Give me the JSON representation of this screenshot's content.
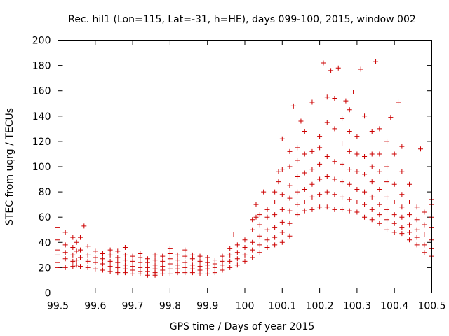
{
  "chart_data": {
    "type": "scatter",
    "title": "Rec. hil1 (Lon=115, Lat=-31, h=HE), days 099-100, 2015, window 002",
    "xlabel": "GPS time / Days of year 2015",
    "ylabel": "STEC from uqrg / TECUs",
    "xlim": [
      99.5,
      100.5
    ],
    "ylim": [
      0,
      200
    ],
    "x_ticks": [
      "99.5",
      "99.6",
      "99.7",
      "99.8",
      "99.9",
      "100",
      "100.1",
      "100.2",
      "100.3",
      "100.4",
      "100.5"
    ],
    "y_ticks": [
      "0",
      "20",
      "40",
      "60",
      "80",
      "100",
      "120",
      "140",
      "160",
      "180",
      "200"
    ],
    "grid": false,
    "marker": "plus",
    "color": "#cc0000",
    "series": [
      {
        "points": [
          [
            99.5,
            20
          ],
          [
            99.5,
            24
          ],
          [
            99.5,
            30
          ],
          [
            99.5,
            34
          ],
          [
            99.5,
            42
          ],
          [
            99.5,
            52
          ],
          [
            99.52,
            20
          ],
          [
            99.52,
            27
          ],
          [
            99.52,
            32
          ],
          [
            99.52,
            38
          ],
          [
            99.52,
            48
          ],
          [
            99.54,
            21
          ],
          [
            99.54,
            25
          ],
          [
            99.54,
            30
          ],
          [
            99.54,
            36
          ],
          [
            99.54,
            44
          ],
          [
            99.55,
            22
          ],
          [
            99.55,
            26
          ],
          [
            99.55,
            33
          ],
          [
            99.55,
            40
          ],
          [
            99.56,
            21
          ],
          [
            99.56,
            28
          ],
          [
            99.56,
            34
          ],
          [
            99.56,
            44
          ],
          [
            99.57,
            53
          ],
          [
            99.58,
            20
          ],
          [
            99.58,
            25
          ],
          [
            99.58,
            30
          ],
          [
            99.58,
            37
          ],
          [
            99.6,
            19
          ],
          [
            99.6,
            24
          ],
          [
            99.6,
            28
          ],
          [
            99.6,
            33
          ],
          [
            99.62,
            18
          ],
          [
            99.62,
            23
          ],
          [
            99.62,
            27
          ],
          [
            99.62,
            31
          ],
          [
            99.64,
            17
          ],
          [
            99.64,
            21
          ],
          [
            99.64,
            25
          ],
          [
            99.64,
            30
          ],
          [
            99.64,
            34
          ],
          [
            99.66,
            16
          ],
          [
            99.66,
            20
          ],
          [
            99.66,
            24
          ],
          [
            99.66,
            28
          ],
          [
            99.66,
            33
          ],
          [
            99.68,
            16
          ],
          [
            99.68,
            19
          ],
          [
            99.68,
            22
          ],
          [
            99.68,
            26
          ],
          [
            99.68,
            30
          ],
          [
            99.68,
            36
          ],
          [
            99.7,
            15
          ],
          [
            99.7,
            18
          ],
          [
            99.7,
            21
          ],
          [
            99.7,
            25
          ],
          [
            99.7,
            29
          ],
          [
            99.72,
            15
          ],
          [
            99.72,
            17
          ],
          [
            99.72,
            20
          ],
          [
            99.72,
            24
          ],
          [
            99.72,
            28
          ],
          [
            99.72,
            31
          ],
          [
            99.74,
            14
          ],
          [
            99.74,
            17
          ],
          [
            99.74,
            20
          ],
          [
            99.74,
            24
          ],
          [
            99.74,
            27
          ],
          [
            99.76,
            14
          ],
          [
            99.76,
            16
          ],
          [
            99.76,
            19
          ],
          [
            99.76,
            22
          ],
          [
            99.76,
            26
          ],
          [
            99.76,
            30
          ],
          [
            99.78,
            15
          ],
          [
            99.78,
            18
          ],
          [
            99.78,
            21
          ],
          [
            99.78,
            25
          ],
          [
            99.78,
            29
          ],
          [
            99.8,
            15
          ],
          [
            99.8,
            19
          ],
          [
            99.8,
            23
          ],
          [
            99.8,
            27
          ],
          [
            99.8,
            31
          ],
          [
            99.8,
            35
          ],
          [
            99.82,
            16
          ],
          [
            99.82,
            19
          ],
          [
            99.82,
            22
          ],
          [
            99.82,
            26
          ],
          [
            99.82,
            30
          ],
          [
            99.84,
            16
          ],
          [
            99.84,
            20
          ],
          [
            99.84,
            24
          ],
          [
            99.84,
            29
          ],
          [
            99.84,
            34
          ],
          [
            99.86,
            16
          ],
          [
            99.86,
            19
          ],
          [
            99.86,
            22
          ],
          [
            99.86,
            27
          ],
          [
            99.86,
            30
          ],
          [
            99.88,
            15
          ],
          [
            99.88,
            18
          ],
          [
            99.88,
            21
          ],
          [
            99.88,
            25
          ],
          [
            99.88,
            29
          ],
          [
            99.9,
            15
          ],
          [
            99.9,
            19
          ],
          [
            99.9,
            22
          ],
          [
            99.9,
            24
          ],
          [
            99.9,
            28
          ],
          [
            99.92,
            16
          ],
          [
            99.92,
            20
          ],
          [
            99.92,
            23
          ],
          [
            99.92,
            26
          ],
          [
            99.94,
            18
          ],
          [
            99.94,
            22
          ],
          [
            99.94,
            25
          ],
          [
            99.94,
            29
          ],
          [
            99.96,
            20
          ],
          [
            99.96,
            25
          ],
          [
            99.96,
            30
          ],
          [
            99.96,
            35
          ],
          [
            99.97,
            46
          ],
          [
            99.98,
            22
          ],
          [
            99.98,
            27
          ],
          [
            99.98,
            32
          ],
          [
            99.98,
            38
          ],
          [
            100.0,
            25
          ],
          [
            100.0,
            30
          ],
          [
            100.0,
            36
          ],
          [
            100.0,
            42
          ],
          [
            100.02,
            28
          ],
          [
            100.02,
            34
          ],
          [
            100.02,
            40
          ],
          [
            100.02,
            50
          ],
          [
            100.02,
            58
          ],
          [
            100.03,
            60
          ],
          [
            100.03,
            70
          ],
          [
            100.04,
            32
          ],
          [
            100.04,
            38
          ],
          [
            100.04,
            45
          ],
          [
            100.04,
            54
          ],
          [
            100.04,
            62
          ],
          [
            100.05,
            80
          ],
          [
            100.06,
            36
          ],
          [
            100.06,
            42
          ],
          [
            100.06,
            50
          ],
          [
            100.06,
            60
          ],
          [
            100.06,
            66
          ],
          [
            100.08,
            38
          ],
          [
            100.08,
            44
          ],
          [
            100.08,
            52
          ],
          [
            100.08,
            62
          ],
          [
            100.08,
            72
          ],
          [
            100.08,
            80
          ],
          [
            100.09,
            88
          ],
          [
            100.09,
            96
          ],
          [
            100.1,
            40
          ],
          [
            100.1,
            48
          ],
          [
            100.1,
            56
          ],
          [
            100.1,
            66
          ],
          [
            100.1,
            78
          ],
          [
            100.1,
            98
          ],
          [
            100.1,
            122
          ],
          [
            100.12,
            45
          ],
          [
            100.12,
            55
          ],
          [
            100.12,
            65
          ],
          [
            100.12,
            75
          ],
          [
            100.12,
            85
          ],
          [
            100.12,
            100
          ],
          [
            100.12,
            112
          ],
          [
            100.13,
            148
          ],
          [
            100.14,
            62
          ],
          [
            100.14,
            70
          ],
          [
            100.14,
            80
          ],
          [
            100.14,
            92
          ],
          [
            100.14,
            105
          ],
          [
            100.14,
            115
          ],
          [
            100.15,
            136
          ],
          [
            100.16,
            65
          ],
          [
            100.16,
            72
          ],
          [
            100.16,
            82
          ],
          [
            100.16,
            95
          ],
          [
            100.16,
            110
          ],
          [
            100.16,
            128
          ],
          [
            100.18,
            66
          ],
          [
            100.18,
            76
          ],
          [
            100.18,
            86
          ],
          [
            100.18,
            98
          ],
          [
            100.18,
            112
          ],
          [
            100.18,
            151
          ],
          [
            100.2,
            68
          ],
          [
            100.2,
            78
          ],
          [
            100.2,
            90
          ],
          [
            100.2,
            102
          ],
          [
            100.2,
            115
          ],
          [
            100.2,
            124
          ],
          [
            100.21,
            182
          ],
          [
            100.22,
            68
          ],
          [
            100.22,
            80
          ],
          [
            100.22,
            92
          ],
          [
            100.22,
            108
          ],
          [
            100.22,
            135
          ],
          [
            100.22,
            155
          ],
          [
            100.23,
            176
          ],
          [
            100.24,
            66
          ],
          [
            100.24,
            78
          ],
          [
            100.24,
            90
          ],
          [
            100.24,
            104
          ],
          [
            100.24,
            130
          ],
          [
            100.24,
            154
          ],
          [
            100.25,
            178
          ],
          [
            100.26,
            66
          ],
          [
            100.26,
            76
          ],
          [
            100.26,
            88
          ],
          [
            100.26,
            102
          ],
          [
            100.26,
            118
          ],
          [
            100.26,
            138
          ],
          [
            100.27,
            152
          ],
          [
            100.28,
            65
          ],
          [
            100.28,
            74
          ],
          [
            100.28,
            86
          ],
          [
            100.28,
            98
          ],
          [
            100.28,
            112
          ],
          [
            100.28,
            128
          ],
          [
            100.28,
            145
          ],
          [
            100.29,
            159
          ],
          [
            100.3,
            64
          ],
          [
            100.3,
            72
          ],
          [
            100.3,
            82
          ],
          [
            100.3,
            96
          ],
          [
            100.3,
            110
          ],
          [
            100.3,
            124
          ],
          [
            100.31,
            177
          ],
          [
            100.32,
            60
          ],
          [
            100.32,
            70
          ],
          [
            100.32,
            80
          ],
          [
            100.32,
            94
          ],
          [
            100.32,
            108
          ],
          [
            100.32,
            140
          ],
          [
            100.34,
            58
          ],
          [
            100.34,
            66
          ],
          [
            100.34,
            76
          ],
          [
            100.34,
            88
          ],
          [
            100.34,
            100
          ],
          [
            100.34,
            110
          ],
          [
            100.34,
            128
          ],
          [
            100.35,
            183
          ],
          [
            100.36,
            55
          ],
          [
            100.36,
            62
          ],
          [
            100.36,
            70
          ],
          [
            100.36,
            82
          ],
          [
            100.36,
            96
          ],
          [
            100.36,
            110
          ],
          [
            100.36,
            130
          ],
          [
            100.38,
            50
          ],
          [
            100.38,
            58
          ],
          [
            100.38,
            66
          ],
          [
            100.38,
            76
          ],
          [
            100.38,
            88
          ],
          [
            100.38,
            100
          ],
          [
            100.38,
            120
          ],
          [
            100.39,
            139
          ],
          [
            100.4,
            48
          ],
          [
            100.4,
            55
          ],
          [
            100.4,
            62
          ],
          [
            100.4,
            72
          ],
          [
            100.4,
            86
          ],
          [
            100.4,
            110
          ],
          [
            100.41,
            151
          ],
          [
            100.42,
            47
          ],
          [
            100.42,
            52
          ],
          [
            100.42,
            60
          ],
          [
            100.42,
            68
          ],
          [
            100.42,
            78
          ],
          [
            100.42,
            96
          ],
          [
            100.42,
            116
          ],
          [
            100.44,
            42
          ],
          [
            100.44,
            48
          ],
          [
            100.44,
            54
          ],
          [
            100.44,
            62
          ],
          [
            100.44,
            72
          ],
          [
            100.44,
            86
          ],
          [
            100.46,
            38
          ],
          [
            100.46,
            44
          ],
          [
            100.46,
            50
          ],
          [
            100.46,
            58
          ],
          [
            100.46,
            68
          ],
          [
            100.47,
            114
          ],
          [
            100.48,
            32
          ],
          [
            100.48,
            38
          ],
          [
            100.48,
            46
          ],
          [
            100.48,
            54
          ],
          [
            100.48,
            64
          ],
          [
            100.5,
            29
          ],
          [
            100.5,
            35
          ],
          [
            100.5,
            42
          ],
          [
            100.5,
            52
          ],
          [
            100.5,
            60
          ],
          [
            100.5,
            70
          ],
          [
            100.5,
            74
          ]
        ]
      }
    ]
  }
}
